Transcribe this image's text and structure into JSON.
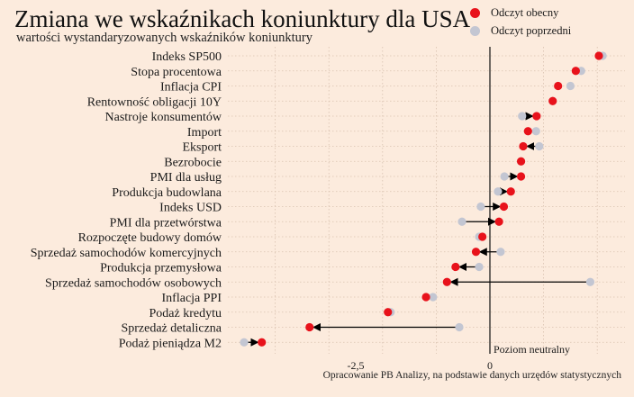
{
  "title": "Zmiana we wskaźnikach koniunktury dla USA",
  "subtitle": "wartości wystandaryzowanych wskaźników koniunktury",
  "source": "Opracowanie PB Analizy, na podstawie danych urzędów statystycznych",
  "legend": {
    "current": "Odczyt obecny",
    "previous": "Odczyt poprzedni"
  },
  "colors": {
    "background": "#fcebdd",
    "current": "#e8121b",
    "previous": "#c3c6d2",
    "arrow": "#000000"
  },
  "chart_data": {
    "type": "dumbbell",
    "neutral_label": "Poziom neutralny",
    "xlim": [
      -4.6,
      2.3
    ],
    "xticks": [
      -2.5,
      0
    ],
    "xtick_labels": [
      "-2,5",
      "0"
    ],
    "series": [
      {
        "name": "Odczyt obecny"
      },
      {
        "name": "Odczyt poprzedni"
      }
    ],
    "categories": [
      {
        "label": "Indeks SP500",
        "current": 2.03,
        "previous": 2.1
      },
      {
        "label": "Stopa procentowa",
        "current": 1.6,
        "previous": 1.7
      },
      {
        "label": "Inflacja CPI",
        "current": 1.27,
        "previous": 1.5
      },
      {
        "label": "Rentowność obligacji 10Y",
        "current": 1.17,
        "previous": 1.17
      },
      {
        "label": "Nastroje konsumentów",
        "current": 0.87,
        "previous": 0.6
      },
      {
        "label": "Import",
        "current": 0.71,
        "previous": 0.86
      },
      {
        "label": "Eksport",
        "current": 0.62,
        "previous": 0.92
      },
      {
        "label": "Bezrobocie",
        "current": 0.58,
        "previous": 0.58
      },
      {
        "label": "PMI dla usług",
        "current": 0.58,
        "previous": 0.27
      },
      {
        "label": "Produkcja budowlana",
        "current": 0.39,
        "previous": 0.15
      },
      {
        "label": "Indeks USD",
        "current": 0.26,
        "previous": -0.17
      },
      {
        "label": "PMI dla przetwórstwa",
        "current": 0.17,
        "previous": -0.52
      },
      {
        "label": "Rozpoczęte budowy domów",
        "current": -0.14,
        "previous": -0.2
      },
      {
        "label": "Sprzedaż samochodów komercyjnych",
        "current": -0.26,
        "previous": 0.2
      },
      {
        "label": "Produkcja przemysłowa",
        "current": -0.64,
        "previous": -0.2
      },
      {
        "label": "Sprzedaż samochodów osobowych",
        "current": -0.8,
        "previous": 1.87
      },
      {
        "label": "Inflacja PPI",
        "current": -1.19,
        "previous": -1.06
      },
      {
        "label": "Podaż kredytu",
        "current": -1.9,
        "previous": -1.85
      },
      {
        "label": "Sprzedaż detaliczna",
        "current": -3.36,
        "previous": -0.57
      },
      {
        "label": "Podaż pieniądza M2",
        "current": -4.25,
        "previous": -4.58
      }
    ]
  }
}
